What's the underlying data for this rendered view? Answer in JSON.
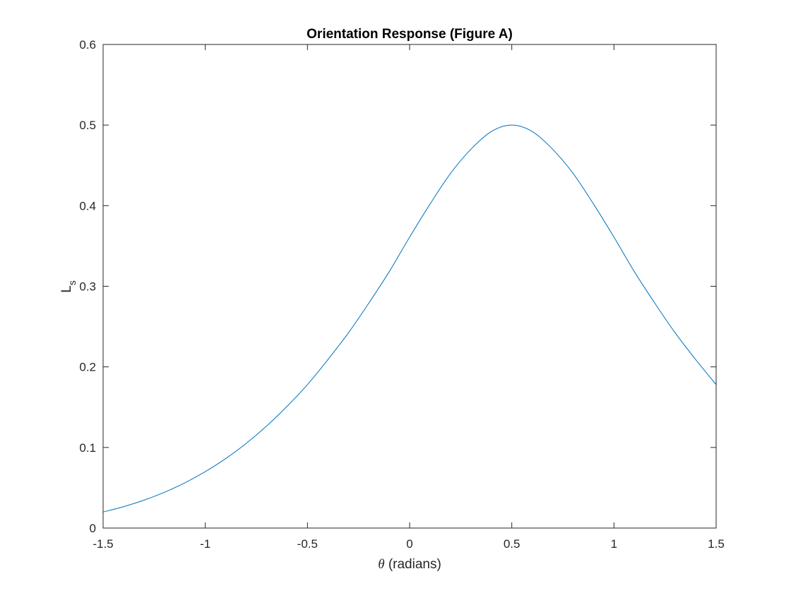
{
  "chart_data": {
    "type": "line",
    "title": "Orientation Response (Figure A)",
    "xlabel": {
      "symbol": "θ",
      "text": " (radians)"
    },
    "ylabel": {
      "main": "L",
      "subscript": "s"
    },
    "xlim": [
      -1.5,
      1.5
    ],
    "ylim": [
      0,
      0.6
    ],
    "xticks": [
      -1.5,
      -1,
      -0.5,
      0,
      0.5,
      1,
      1.5
    ],
    "xtick_labels": [
      "-1.5",
      "-1",
      "-0.5",
      "0",
      "0.5",
      "1",
      "1.5"
    ],
    "yticks": [
      0,
      0.1,
      0.2,
      0.3,
      0.4,
      0.5,
      0.6
    ],
    "ytick_labels": [
      "0",
      "0.1",
      "0.2",
      "0.3",
      "0.4",
      "0.5",
      "0.6"
    ],
    "grid": false,
    "line_color": "#0072BD",
    "series": [
      {
        "x": [
          -1.5,
          -1.4,
          -1.3,
          -1.2,
          -1.1,
          -1.0,
          -0.9,
          -0.8,
          -0.7,
          -0.6,
          -0.5,
          -0.4,
          -0.3,
          -0.2,
          -0.1,
          0,
          0.1,
          0.2,
          0.3,
          0.4,
          0.5,
          0.6,
          0.7,
          0.8,
          0.9,
          1.0,
          1.1,
          1.2,
          1.3,
          1.4,
          1.5
        ],
        "values": [
          0.0199,
          0.0265,
          0.0346,
          0.0444,
          0.0561,
          0.07,
          0.0862,
          0.105,
          0.1266,
          0.151,
          0.178,
          0.209,
          0.242,
          0.279,
          0.318,
          0.361,
          0.402,
          0.44,
          0.47,
          0.492,
          0.5,
          0.492,
          0.47,
          0.44,
          0.402,
          0.361,
          0.318,
          0.279,
          0.242,
          0.209,
          0.178
        ]
      }
    ]
  }
}
